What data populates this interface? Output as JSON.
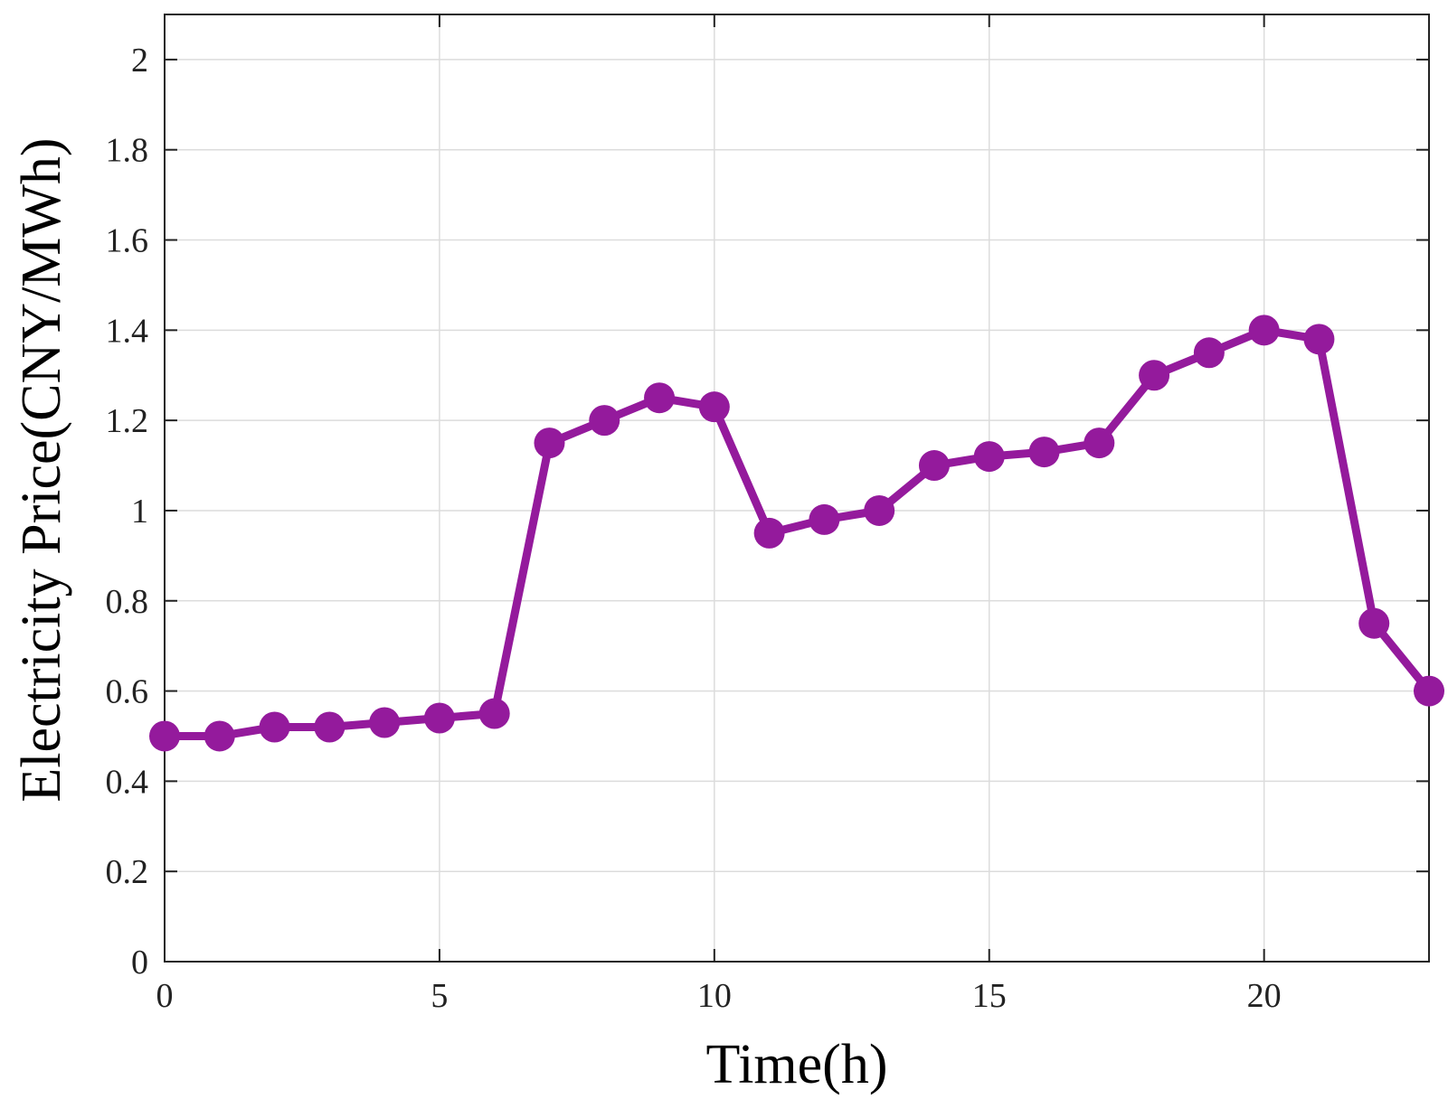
{
  "chart_data": {
    "type": "line",
    "title": "",
    "xlabel": "Time(h)",
    "ylabel": "Electricity Price(CNY/MWh)",
    "xlim": [
      0,
      23
    ],
    "ylim": [
      0,
      2.1
    ],
    "xticks": [
      0,
      5,
      10,
      15,
      20
    ],
    "xtick_labels": [
      "0",
      "5",
      "10",
      "15",
      "20"
    ],
    "yticks": [
      0,
      0.2,
      0.4,
      0.6,
      0.8,
      1.0,
      1.2,
      1.4,
      1.6,
      1.8,
      2.0
    ],
    "ytick_labels": [
      "0",
      "0.2",
      "0.4",
      "0.6",
      "0.8",
      "1",
      "1.2",
      "1.4",
      "1.6",
      "1.8",
      "2"
    ],
    "grid": true,
    "legend": "none",
    "series": [
      {
        "color": "#941a9c",
        "marker": "circle",
        "x": [
          0,
          1,
          2,
          3,
          4,
          5,
          6,
          7,
          8,
          9,
          10,
          11,
          12,
          13,
          14,
          15,
          16,
          17,
          18,
          19,
          20,
          21,
          22,
          23
        ],
        "y": [
          0.5,
          0.5,
          0.52,
          0.52,
          0.53,
          0.54,
          0.55,
          1.15,
          1.2,
          1.25,
          1.23,
          0.95,
          0.98,
          1.0,
          1.1,
          1.12,
          1.13,
          1.15,
          1.3,
          1.35,
          1.4,
          1.38,
          0.75,
          0.6
        ]
      }
    ]
  }
}
